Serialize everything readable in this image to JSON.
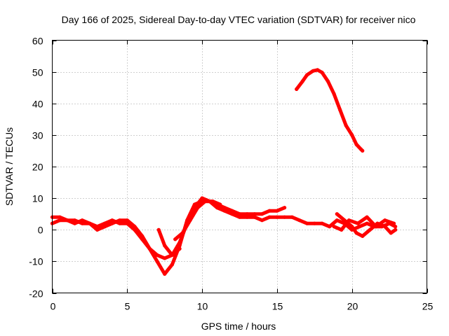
{
  "chart_data": {
    "type": "line",
    "title": "Day 166 of 2025, Sidereal Day-to-day VTEC variation (SDTVAR) for receiver nico",
    "xlabel": "GPS time / hours",
    "ylabel": "SDTVAR / TECUs",
    "xlim": [
      0,
      25
    ],
    "ylim": [
      -20,
      60
    ],
    "xticks": [
      0,
      5,
      10,
      15,
      20,
      25
    ],
    "yticks": [
      -20,
      -10,
      0,
      10,
      20,
      30,
      40,
      50,
      60
    ],
    "grid": true,
    "colors": {
      "series": "#ff0000",
      "grid": "#a0a0a0",
      "axis": "#000000"
    },
    "series": [
      {
        "name": "track-1",
        "x": [
          0,
          0.5,
          1,
          1.5,
          2,
          2.5,
          3,
          3.5,
          4,
          4.5,
          5,
          5.5,
          6,
          6.5,
          7,
          7.5,
          8,
          8.5,
          9,
          9.5,
          10,
          10.5,
          11,
          11.5,
          12,
          12.5,
          13,
          13.5,
          14,
          14.5,
          15,
          15.5,
          16,
          16.5,
          17,
          17.5,
          18,
          18.5,
          19,
          19.5,
          20,
          20.5,
          21,
          21.5,
          22,
          22.5,
          22.9
        ],
        "y": [
          2,
          3,
          3,
          2,
          3,
          2,
          0,
          1,
          2,
          3,
          3,
          1,
          -2,
          -6,
          -10,
          -14,
          -11,
          -5,
          3,
          8,
          9,
          9,
          7,
          6,
          5,
          4,
          4,
          4,
          3,
          4,
          4,
          4,
          4,
          3,
          2,
          2,
          2,
          1,
          3,
          2,
          0,
          1,
          2,
          1,
          1,
          2,
          1
        ]
      },
      {
        "name": "track-2",
        "x": [
          0,
          0.5,
          1,
          1.5,
          2,
          2.5,
          3,
          3.5,
          4,
          4.5,
          5,
          5.5,
          6,
          6.5,
          7,
          7.5,
          8,
          8.5,
          9,
          9.5,
          10,
          10.5,
          11,
          11.5,
          12,
          12.5,
          13,
          13.5,
          14,
          14.5,
          15,
          15.5
        ],
        "y": [
          4,
          4,
          3,
          3,
          2,
          2,
          1,
          2,
          3,
          2,
          2,
          0,
          -3,
          -6,
          -8,
          -9,
          -8,
          -4,
          2,
          7,
          10,
          9,
          8,
          7,
          6,
          5,
          5,
          5,
          5,
          6,
          6,
          7
        ]
      },
      {
        "name": "track-3",
        "x": [
          7.1,
          7.5,
          8,
          8.5
        ],
        "y": [
          0,
          -5,
          -8,
          -6
        ]
      },
      {
        "name": "track-4",
        "x": [
          8.2,
          8.7,
          9.2,
          9.7,
          10.2,
          10.7,
          11.2
        ],
        "y": [
          -3,
          -1,
          3,
          7,
          9,
          9,
          8
        ]
      },
      {
        "name": "track-5",
        "x": [
          19,
          19.5,
          20,
          20.3,
          20.7,
          21.2,
          21.7,
          22.2,
          22.6,
          22.9
        ],
        "y": [
          5,
          3,
          1,
          -1,
          -2,
          0,
          2,
          1,
          -1,
          0
        ]
      },
      {
        "name": "track-6",
        "x": [
          18.8,
          19.3,
          19.8,
          20.4,
          21,
          21.6,
          22.2,
          22.8
        ],
        "y": [
          1,
          0,
          3,
          2,
          4,
          1,
          3,
          2
        ]
      },
      {
        "name": "track-7",
        "x": [
          16.3,
          16.7,
          17,
          17.4,
          17.7,
          18,
          18.4,
          18.8,
          19.2,
          19.6,
          20,
          20.3,
          20.6,
          20.7
        ],
        "y": [
          44.5,
          47,
          49,
          50.3,
          50.6,
          49.8,
          47,
          43,
          38,
          33,
          30,
          27,
          25.5,
          25
        ]
      }
    ]
  }
}
